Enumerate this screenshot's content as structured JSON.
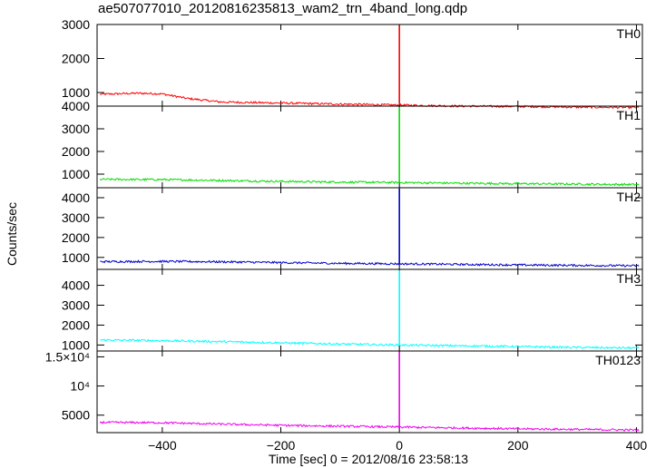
{
  "title": "ae507077010_20120816235813_wam2_trn_4band_long.qdp",
  "chart_data": {
    "type": "line",
    "xlabel": "Time [sec] 0 = 2012/08/16 23:58:13",
    "ylabel": "Counts/sec",
    "xlim": [
      -510,
      410
    ],
    "x_ticks": [
      "−400",
      "−200",
      "0",
      "200",
      "400"
    ],
    "x_tick_values": [
      -400,
      -200,
      0,
      200,
      400
    ],
    "grid": false,
    "series": [
      {
        "name": "TH0",
        "color": "#ff0000",
        "ylim": [
          600,
          3000
        ],
        "y_ticks": [
          "1000",
          "2000",
          "3000"
        ],
        "y_tick_values": [
          1000,
          2000,
          3000
        ],
        "x": [
          -500,
          -440,
          -400,
          -360,
          -300,
          -200,
          -100,
          0,
          100,
          200,
          300,
          400
        ],
        "values": [
          950,
          980,
          960,
          830,
          720,
          690,
          660,
          630,
          600,
          590,
          570,
          560
        ],
        "peak": {
          "x": 0,
          "value": 3000
        }
      },
      {
        "name": "TH1",
        "color": "#00dd00",
        "ylim": [
          400,
          4000
        ],
        "y_ticks": [
          "1000",
          "2000",
          "3000",
          "4000"
        ],
        "y_tick_values": [
          1000,
          2000,
          3000,
          4000
        ],
        "x": [
          -500,
          -400,
          -300,
          -200,
          -100,
          0,
          100,
          200,
          300,
          400
        ],
        "values": [
          770,
          760,
          720,
          680,
          650,
          630,
          600,
          580,
          560,
          540
        ],
        "peak": {
          "x": 0,
          "value": 4000
        }
      },
      {
        "name": "TH2",
        "color": "#0000cc",
        "ylim": [
          400,
          4500
        ],
        "y_ticks": [
          "1000",
          "2000",
          "3000",
          "4000"
        ],
        "y_tick_values": [
          1000,
          2000,
          3000,
          4000
        ],
        "x": [
          -500,
          -400,
          -300,
          -200,
          -100,
          0,
          100,
          200,
          300,
          400
        ],
        "values": [
          790,
          800,
          780,
          740,
          700,
          680,
          650,
          620,
          600,
          580
        ],
        "peak": {
          "x": 0,
          "value": 4500
        }
      },
      {
        "name": "TH3",
        "color": "#00ffff",
        "ylim": [
          700,
          4800
        ],
        "y_ticks": [
          "1000",
          "2000",
          "3000",
          "4000"
        ],
        "y_tick_values": [
          1000,
          2000,
          3000,
          4000
        ],
        "x": [
          -500,
          -400,
          -300,
          -200,
          -100,
          0,
          100,
          200,
          300,
          400
        ],
        "values": [
          1250,
          1220,
          1170,
          1110,
          1050,
          1000,
          960,
          920,
          880,
          850
        ],
        "peak": {
          "x": 0,
          "value": 4800
        }
      },
      {
        "name": "TH0123",
        "color": "#ee00ee",
        "ylim": [
          2000,
          16000
        ],
        "y_ticks": [
          "5000",
          "10⁴",
          "1.5×10⁴"
        ],
        "y_tick_values": [
          5000,
          10000,
          15000
        ],
        "x": [
          -500,
          -400,
          -300,
          -200,
          -100,
          0,
          100,
          200,
          300,
          400
        ],
        "values": [
          3750,
          3700,
          3450,
          3250,
          3100,
          2950,
          2800,
          2650,
          2550,
          2450
        ],
        "peak": {
          "x": 0,
          "value": 16000
        }
      }
    ]
  }
}
